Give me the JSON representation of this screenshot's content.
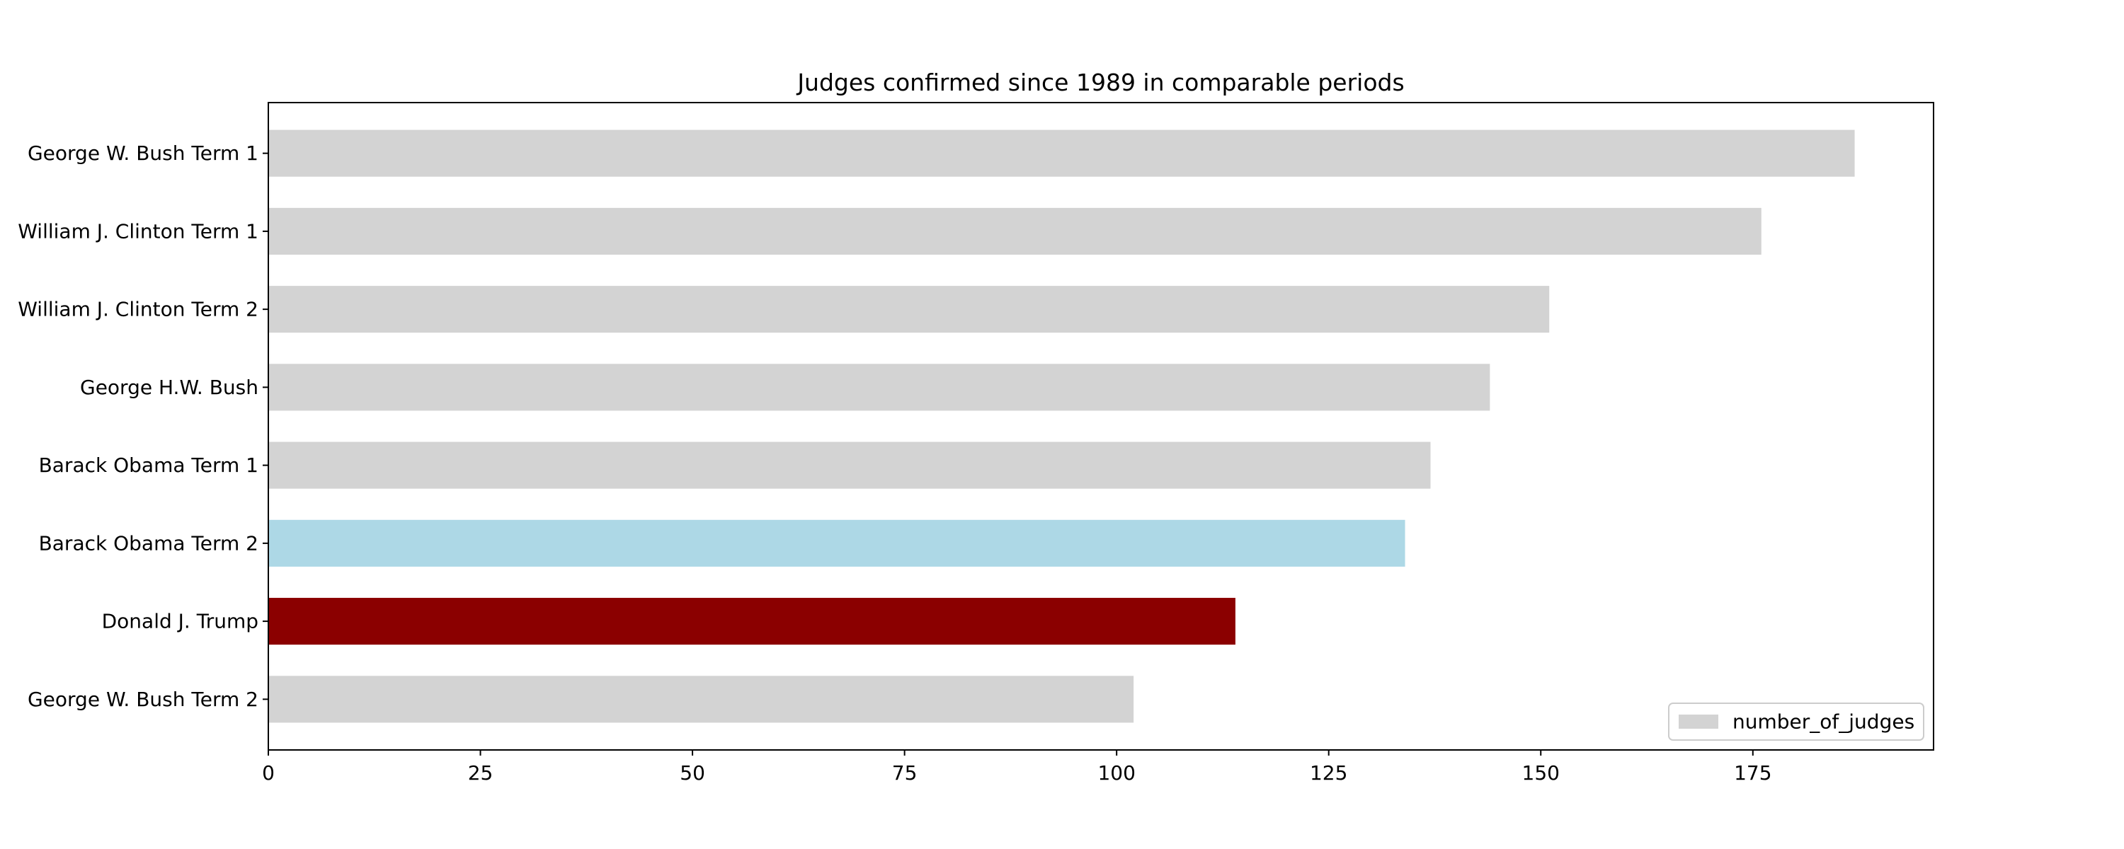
{
  "chart_data": {
    "type": "bar",
    "orientation": "horizontal",
    "title": "Judges confirmed since 1989 in comparable periods",
    "xlabel": "",
    "ylabel": "",
    "categories": [
      "George W. Bush Term 1",
      "William J. Clinton Term 1",
      "William J. Clinton Term 2",
      "George H.W. Bush",
      "Barack Obama Term 1",
      "Barack Obama Term 2",
      "Donald J. Trump",
      "George W. Bush Term 2"
    ],
    "series": [
      {
        "name": "number_of_judges",
        "values": [
          187,
          176,
          151,
          144,
          137,
          134,
          114,
          102
        ]
      }
    ],
    "bar_colors": [
      "#d3d3d3",
      "#d3d3d3",
      "#d3d3d3",
      "#d3d3d3",
      "#d3d3d3",
      "#add8e6",
      "#8b0000",
      "#d3d3d3"
    ],
    "legend_color": "#d3d3d3",
    "xlim": [
      0,
      196.3
    ],
    "xticks": [
      0,
      25,
      50,
      75,
      100,
      125,
      150,
      175
    ],
    "grid": false,
    "legend_position": "bottom-right"
  }
}
